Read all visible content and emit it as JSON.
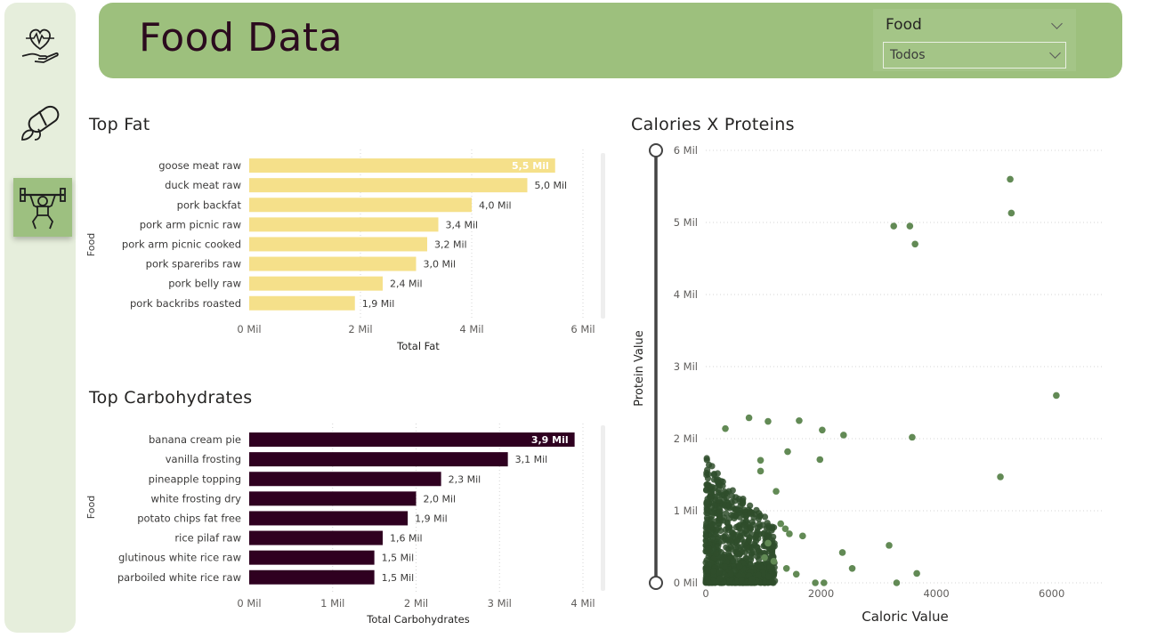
{
  "header": {
    "title": "Food Data"
  },
  "slicer": {
    "label": "Food",
    "value": "Todos"
  },
  "colors": {
    "fat_bar": "#f5e08a",
    "carb_bar": "#2f0020",
    "scatter_point": "#3d5e38",
    "header_bg": "#9dc07d",
    "sidebar_bg": "#e6eedc"
  },
  "nav": [
    "heart-hand-icon",
    "pill-leaf-icon",
    "weightlifter-icon"
  ],
  "chart_data": [
    {
      "type": "bar",
      "orientation": "horizontal",
      "title": "Top Fat",
      "categories": [
        "goose meat raw",
        "duck meat raw",
        "pork backfat",
        "pork arm picnic raw",
        "pork arm picnic cooked",
        "pork spareribs raw",
        "pork belly raw",
        "pork backribs roasted"
      ],
      "values": [
        5.5,
        5.0,
        4.0,
        3.4,
        3.2,
        3.0,
        2.4,
        1.9
      ],
      "value_labels": [
        "5,5 Mil",
        "5,0 Mil",
        "4,0 Mil",
        "3,4 Mil",
        "3,2 Mil",
        "3,0 Mil",
        "2,4 Mil",
        "1,9 Mil"
      ],
      "xlabel": "Total Fat",
      "ylabel": "Food",
      "xticks": [
        "0 Mil",
        "2 Mil",
        "4 Mil",
        "6 Mil"
      ],
      "xlim": [
        0,
        6
      ]
    },
    {
      "type": "bar",
      "orientation": "horizontal",
      "title": "Top Carbohydrates",
      "categories": [
        "banana cream pie",
        "vanilla frosting",
        "pineapple topping",
        "white frosting dry",
        "potato chips fat free",
        "rice pilaf raw",
        "glutinous white rice raw",
        "parboiled white rice raw"
      ],
      "values": [
        3.9,
        3.1,
        2.3,
        2.0,
        1.9,
        1.6,
        1.5,
        1.5
      ],
      "value_labels": [
        "3,9 Mil",
        "3,1 Mil",
        "2,3 Mil",
        "2,0 Mil",
        "1,9 Mil",
        "1,6 Mil",
        "1,5 Mil",
        "1,5 Mil"
      ],
      "xlabel": "Total Carbohydrates",
      "ylabel": "Food",
      "xticks": [
        "0 Mil",
        "1 Mil",
        "2 Mil",
        "3 Mil",
        "4 Mil"
      ],
      "xlim": [
        0,
        4
      ]
    },
    {
      "type": "scatter",
      "title": "Calories X Proteins",
      "xlabel": "Caloric Value",
      "ylabel": "Protein Value",
      "xticks": [
        "0",
        "2000",
        "4000",
        "6000"
      ],
      "yticks": [
        "0 Mil",
        "1 Mil",
        "2 Mil",
        "3 Mil",
        "4 Mil",
        "5 Mil",
        "6 Mil"
      ],
      "xlim": [
        0,
        6900
      ],
      "ylim": [
        0,
        6
      ],
      "points": [
        [
          5280,
          5.6
        ],
        [
          5300,
          5.13
        ],
        [
          3260,
          4.95
        ],
        [
          3540,
          4.95
        ],
        [
          3630,
          4.7
        ],
        [
          6080,
          2.6
        ],
        [
          3580,
          2.02
        ],
        [
          5110,
          1.47
        ],
        [
          750,
          2.29
        ],
        [
          1080,
          2.24
        ],
        [
          1620,
          2.25
        ],
        [
          2020,
          2.12
        ],
        [
          2390,
          2.05
        ],
        [
          1420,
          1.82
        ],
        [
          1980,
          1.71
        ],
        [
          340,
          2.14
        ],
        [
          3180,
          0.52
        ],
        [
          2370,
          0.42
        ],
        [
          2540,
          0.2
        ],
        [
          3660,
          0.13
        ],
        [
          1900,
          0.0
        ],
        [
          2050,
          0.0
        ],
        [
          3310,
          0.0
        ],
        [
          950,
          1.7
        ],
        [
          950,
          1.55
        ],
        [
          1220,
          1.27
        ],
        [
          1300,
          0.82
        ],
        [
          1380,
          0.75
        ],
        [
          1450,
          0.68
        ],
        [
          1400,
          0.2
        ],
        [
          1570,
          0.12
        ],
        [
          1680,
          0.65
        ],
        [
          1080,
          0.55
        ],
        [
          1020,
          0.35
        ],
        [
          1180,
          0.3
        ]
      ],
      "dense_cluster": {
        "x_range": [
          0,
          1200
        ],
        "y_range": [
          0,
          1.8
        ],
        "count": 900
      }
    }
  ]
}
